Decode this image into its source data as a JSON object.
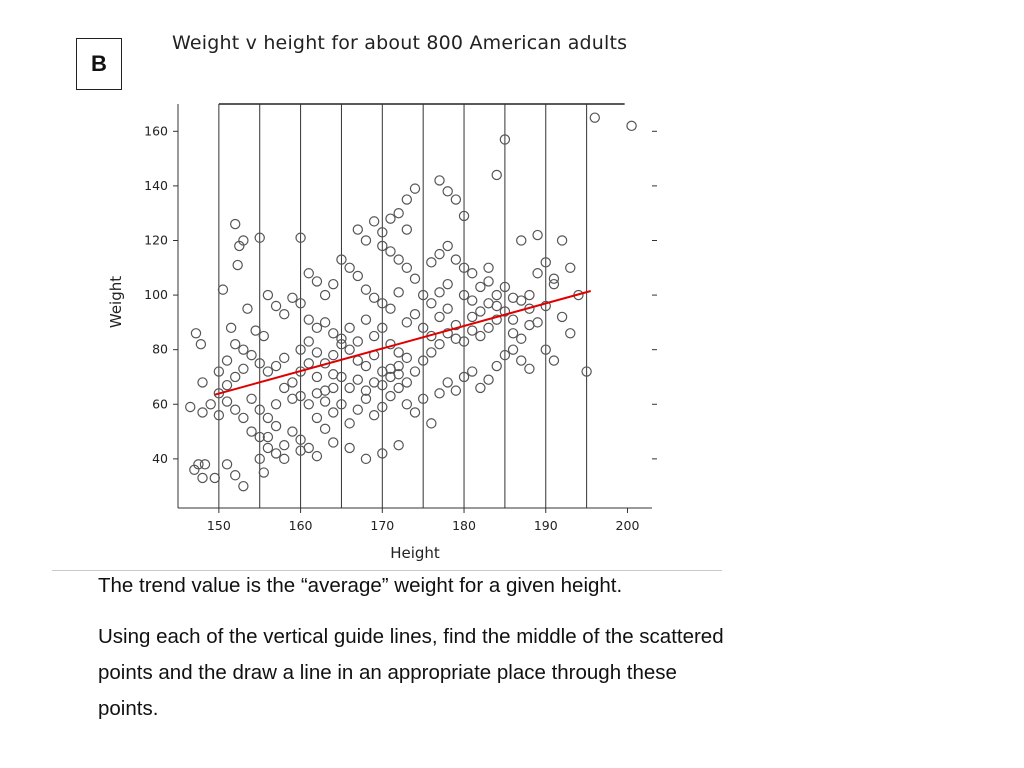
{
  "panel": {
    "label": "B"
  },
  "instructions": {
    "line1": "The trend value is the “average” weight for a given height.",
    "line2": "Using each of the vertical guide lines, find the middle of the scattered points and the draw a line in an appropriate place through these points."
  },
  "chart_data": {
    "type": "scatter",
    "title": "Weight v height for about 800 American adults",
    "xlabel": "Height",
    "ylabel": "Weight",
    "xlim": [
      145,
      203
    ],
    "ylim": [
      22,
      170
    ],
    "xticks": [
      150,
      160,
      170,
      180,
      190,
      200
    ],
    "yticks": [
      40,
      60,
      80,
      100,
      120,
      140,
      160
    ],
    "guide_lines_x": [
      150,
      155,
      160,
      165,
      170,
      175,
      180,
      185,
      190,
      195
    ],
    "grid": false,
    "colors": {
      "points": "#555555",
      "trend": "#e00000",
      "guides": "#333333"
    },
    "sample_points": [
      [
        146.5,
        59
      ],
      [
        147,
        36
      ],
      [
        147.5,
        38
      ],
      [
        148,
        33
      ],
      [
        148.3,
        38
      ],
      [
        147.2,
        86
      ],
      [
        147.8,
        82
      ],
      [
        148,
        57
      ],
      [
        149.5,
        33
      ],
      [
        151,
        38
      ],
      [
        152,
        34
      ],
      [
        153,
        30
      ],
      [
        150.5,
        102
      ],
      [
        152,
        126
      ],
      [
        152.5,
        118
      ],
      [
        153,
        120
      ],
      [
        152.3,
        111
      ],
      [
        155,
        121
      ],
      [
        153.5,
        95
      ],
      [
        151.5,
        88
      ],
      [
        154.5,
        87
      ],
      [
        155.5,
        85
      ],
      [
        150,
        64
      ],
      [
        151,
        67
      ],
      [
        152,
        70
      ],
      [
        153,
        73
      ],
      [
        154,
        62
      ],
      [
        155,
        58
      ],
      [
        156,
        55
      ],
      [
        157,
        60
      ],
      [
        158,
        66
      ],
      [
        159,
        68
      ],
      [
        160,
        72
      ],
      [
        161,
        75
      ],
      [
        162,
        70
      ],
      [
        163,
        65
      ],
      [
        164,
        78
      ],
      [
        165,
        82
      ],
      [
        166,
        80
      ],
      [
        167,
        76
      ],
      [
        168,
        74
      ],
      [
        169,
        85
      ],
      [
        170,
        88
      ],
      [
        171,
        82
      ],
      [
        172,
        79
      ],
      [
        173,
        90
      ],
      [
        174,
        93
      ],
      [
        175,
        88
      ],
      [
        176,
        85
      ],
      [
        177,
        92
      ],
      [
        178,
        95
      ],
      [
        179,
        89
      ],
      [
        180,
        100
      ],
      [
        181,
        98
      ],
      [
        182,
        103
      ],
      [
        183,
        105
      ],
      [
        184,
        96
      ],
      [
        185,
        94
      ],
      [
        186,
        91
      ],
      [
        187,
        98
      ],
      [
        188,
        100
      ],
      [
        189,
        108
      ],
      [
        190,
        112
      ],
      [
        191,
        106
      ],
      [
        192,
        120
      ],
      [
        193,
        110
      ],
      [
        195,
        72
      ],
      [
        185,
        157
      ],
      [
        184,
        144
      ],
      [
        177,
        142
      ],
      [
        174,
        139
      ],
      [
        178,
        138
      ],
      [
        173,
        135
      ],
      [
        172,
        130
      ],
      [
        180,
        129
      ],
      [
        179,
        135
      ],
      [
        181,
        108
      ],
      [
        183,
        110
      ],
      [
        189,
        122
      ],
      [
        187,
        120
      ],
      [
        160,
        121
      ],
      [
        161,
        108
      ],
      [
        162,
        105
      ],
      [
        163,
        100
      ],
      [
        164,
        104
      ],
      [
        165,
        113
      ],
      [
        166,
        110
      ],
      [
        167,
        107
      ],
      [
        168,
        102
      ],
      [
        169,
        99
      ],
      [
        170,
        97
      ],
      [
        171,
        95
      ],
      [
        172,
        101
      ],
      [
        156,
        100
      ],
      [
        157,
        96
      ],
      [
        158,
        93
      ],
      [
        159,
        99
      ],
      [
        160,
        97
      ],
      [
        161,
        91
      ],
      [
        162,
        88
      ],
      [
        156,
        48
      ],
      [
        157,
        52
      ],
      [
        158,
        45
      ],
      [
        159,
        50
      ],
      [
        160,
        47
      ],
      [
        161,
        44
      ],
      [
        162,
        55
      ],
      [
        163,
        51
      ],
      [
        164,
        57
      ],
      [
        165,
        60
      ],
      [
        166,
        53
      ],
      [
        167,
        58
      ],
      [
        168,
        62
      ],
      [
        169,
        56
      ],
      [
        170,
        59
      ],
      [
        171,
        63
      ],
      [
        172,
        66
      ],
      [
        173,
        60
      ],
      [
        174,
        57
      ],
      [
        175,
        62
      ],
      [
        176,
        53
      ],
      [
        177,
        64
      ],
      [
        178,
        68
      ],
      [
        179,
        65
      ],
      [
        180,
        70
      ],
      [
        181,
        72
      ],
      [
        182,
        66
      ],
      [
        183,
        69
      ],
      [
        184,
        74
      ],
      [
        185,
        78
      ],
      [
        186,
        80
      ],
      [
        187,
        76
      ],
      [
        188,
        73
      ],
      [
        190,
        80
      ],
      [
        191,
        76
      ],
      [
        152,
        58
      ],
      [
        153,
        55
      ],
      [
        154,
        50
      ],
      [
        155,
        48
      ],
      [
        156,
        44
      ],
      [
        155,
        40
      ],
      [
        155.5,
        35
      ],
      [
        157,
        42
      ],
      [
        158,
        40
      ],
      [
        150,
        56
      ],
      [
        149,
        60
      ],
      [
        148,
        68
      ],
      [
        151,
        61
      ],
      [
        150,
        72
      ],
      [
        163,
        90
      ],
      [
        164,
        86
      ],
      [
        165,
        84
      ],
      [
        166,
        88
      ],
      [
        167,
        83
      ],
      [
        168,
        91
      ],
      [
        169,
        78
      ],
      [
        170,
        72
      ],
      [
        171,
        70
      ],
      [
        172,
        74
      ],
      [
        173,
        77
      ],
      [
        174,
        72
      ],
      [
        175,
        76
      ],
      [
        176,
        79
      ],
      [
        177,
        82
      ],
      [
        178,
        86
      ],
      [
        179,
        84
      ],
      [
        180,
        83
      ],
      [
        181,
        87
      ],
      [
        182,
        85
      ],
      [
        183,
        88
      ],
      [
        184,
        91
      ],
      [
        186,
        86
      ],
      [
        187,
        84
      ],
      [
        188,
        89
      ],
      [
        165,
        70
      ],
      [
        166,
        66
      ],
      [
        167,
        69
      ],
      [
        168,
        65
      ],
      [
        169,
        68
      ],
      [
        170,
        67
      ],
      [
        171,
        73
      ],
      [
        172,
        71
      ],
      [
        173,
        68
      ],
      [
        160,
        80
      ],
      [
        161,
        83
      ],
      [
        162,
        79
      ],
      [
        163,
        75
      ],
      [
        164,
        71
      ],
      [
        158,
        77
      ],
      [
        157,
        74
      ],
      [
        156,
        72
      ],
      [
        155,
        75
      ],
      [
        154,
        78
      ],
      [
        153,
        80
      ],
      [
        152,
        82
      ],
      [
        151,
        76
      ],
      [
        159,
        62
      ],
      [
        160,
        63
      ],
      [
        161,
        60
      ],
      [
        162,
        64
      ],
      [
        163,
        61
      ],
      [
        164,
        66
      ],
      [
        176,
        97
      ],
      [
        177,
        101
      ],
      [
        178,
        104
      ],
      [
        175,
        100
      ],
      [
        174,
        106
      ],
      [
        173,
        110
      ],
      [
        172,
        113
      ],
      [
        171,
        116
      ],
      [
        170,
        118
      ],
      [
        176,
        112
      ],
      [
        177,
        115
      ],
      [
        178,
        118
      ],
      [
        179,
        113
      ],
      [
        180,
        110
      ],
      [
        193,
        86
      ],
      [
        194,
        100
      ],
      [
        191,
        104
      ],
      [
        190,
        96
      ],
      [
        192,
        92
      ],
      [
        189,
        90
      ],
      [
        188,
        95
      ],
      [
        186,
        99
      ],
      [
        185,
        103
      ],
      [
        184,
        100
      ],
      [
        183,
        97
      ],
      [
        182,
        94
      ],
      [
        181,
        92
      ],
      [
        196,
        165
      ],
      [
        200.5,
        162
      ],
      [
        167,
        124
      ],
      [
        168,
        120
      ],
      [
        169,
        127
      ],
      [
        170,
        123
      ],
      [
        171,
        128
      ],
      [
        173,
        124
      ],
      [
        168,
        40
      ],
      [
        170,
        42
      ],
      [
        172,
        45
      ],
      [
        166,
        44
      ],
      [
        164,
        46
      ],
      [
        162,
        41
      ],
      [
        160,
        43
      ]
    ],
    "trend_line": {
      "x": [
        149.5,
        195.5
      ],
      "y": [
        63.5,
        101.5
      ],
      "color": "#e00000"
    }
  }
}
